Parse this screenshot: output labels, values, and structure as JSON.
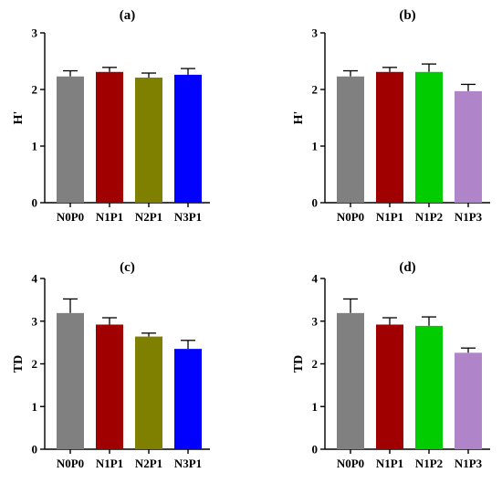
{
  "chart_data": [
    {
      "type": "bar",
      "title": "(a)",
      "ylabel": "H'",
      "ylim": [
        0,
        3
      ],
      "yticks": [
        0,
        1,
        2,
        3
      ],
      "categories": [
        "N0P0",
        "N1P1",
        "N2P1",
        "N3P1"
      ],
      "values": [
        2.23,
        2.31,
        2.21,
        2.26
      ],
      "errors": [
        0.1,
        0.08,
        0.08,
        0.11
      ],
      "colors": [
        "#808080",
        "#a00000",
        "#808000",
        "#0000ff"
      ],
      "grid": false
    },
    {
      "type": "bar",
      "title": "(b)",
      "ylabel": "H'",
      "ylim": [
        0,
        3
      ],
      "yticks": [
        0,
        1,
        2,
        3
      ],
      "categories": [
        "N0P0",
        "N1P1",
        "N1P2",
        "N1P3"
      ],
      "values": [
        2.23,
        2.31,
        2.31,
        1.97
      ],
      "errors": [
        0.1,
        0.08,
        0.14,
        0.12
      ],
      "colors": [
        "#808080",
        "#a00000",
        "#00cc00",
        "#b084c8"
      ],
      "grid": false
    },
    {
      "type": "bar",
      "title": "(c)",
      "ylabel": "TD",
      "ylim": [
        0,
        4
      ],
      "yticks": [
        0,
        1,
        2,
        3,
        4
      ],
      "categories": [
        "N0P0",
        "N1P1",
        "N2P1",
        "N3P1"
      ],
      "values": [
        3.19,
        2.92,
        2.64,
        2.35
      ],
      "errors": [
        0.33,
        0.16,
        0.08,
        0.2
      ],
      "colors": [
        "#808080",
        "#a00000",
        "#808000",
        "#0000ff"
      ],
      "grid": false
    },
    {
      "type": "bar",
      "title": "(d)",
      "ylabel": "TD",
      "ylim": [
        0,
        4
      ],
      "yticks": [
        0,
        1,
        2,
        3,
        4
      ],
      "categories": [
        "N0P0",
        "N1P1",
        "N1P2",
        "N1P3"
      ],
      "values": [
        3.19,
        2.92,
        2.89,
        2.26
      ],
      "errors": [
        0.33,
        0.16,
        0.21,
        0.11
      ],
      "colors": [
        "#808080",
        "#a00000",
        "#00cc00",
        "#b084c8"
      ],
      "grid": false
    }
  ]
}
